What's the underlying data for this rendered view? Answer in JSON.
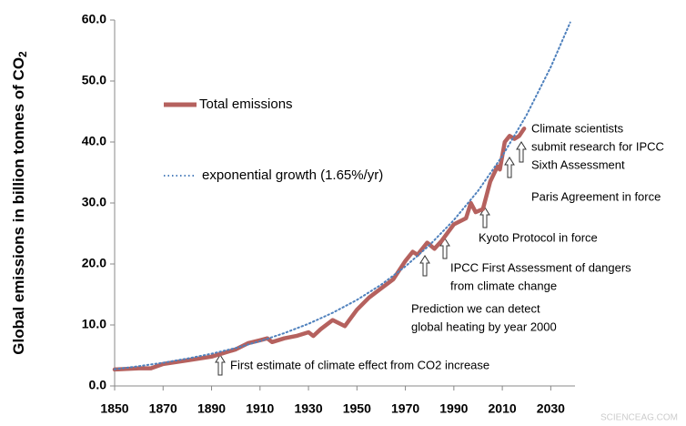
{
  "chart_data": {
    "type": "line",
    "ylabel": [
      "Global emissions in billion tonnes of CO",
      "2"
    ],
    "xlim": [
      1850,
      2040
    ],
    "ylim": [
      0,
      60
    ],
    "xticks": [
      1850,
      1870,
      1890,
      1910,
      1930,
      1950,
      1970,
      1990,
      2010,
      2030
    ],
    "yticks": [
      {
        "value": 0,
        "label": "0.0"
      },
      {
        "value": 10,
        "label": "10.0"
      },
      {
        "value": 20,
        "label": "20.0"
      },
      {
        "value": 30,
        "label": "30.0"
      },
      {
        "value": 40,
        "label": "40.0"
      },
      {
        "value": 50,
        "label": "50.0"
      },
      {
        "value": 60,
        "label": "60.0"
      }
    ],
    "series": [
      {
        "name": "Total emissions",
        "color": "#b5615e",
        "style": "solid",
        "x": [
          1850,
          1860,
          1865,
          1870,
          1880,
          1890,
          1900,
          1905,
          1910,
          1913,
          1915,
          1920,
          1925,
          1930,
          1932,
          1935,
          1940,
          1945,
          1950,
          1955,
          1960,
          1965,
          1970,
          1973,
          1975,
          1979,
          1982,
          1985,
          1990,
          1995,
          1997,
          1999,
          2002,
          2005,
          2008,
          2009,
          2011,
          2013,
          2015,
          2017,
          2019
        ],
        "values": [
          2.7,
          2.9,
          2.9,
          3.6,
          4.2,
          4.8,
          6.0,
          7.0,
          7.5,
          7.8,
          7.2,
          7.8,
          8.2,
          8.8,
          8.2,
          9.3,
          10.8,
          9.8,
          12.5,
          14.5,
          16,
          17.5,
          20.5,
          22,
          21.5,
          23.5,
          22.5,
          23.8,
          26.5,
          27.5,
          30,
          28.5,
          29,
          33.5,
          36,
          35.5,
          40,
          41,
          40.5,
          41,
          42.2
        ]
      },
      {
        "name": "exponential growth (1.65%/yr)",
        "color": "#4f81bd",
        "style": "dotted",
        "x": [
          1850,
          1860,
          1870,
          1880,
          1890,
          1900,
          1910,
          1920,
          1930,
          1940,
          1950,
          1960,
          1970,
          1980,
          1990,
          2000,
          2010,
          2020,
          2030,
          2038
        ],
        "values": [
          2.75,
          3.24,
          3.81,
          4.49,
          5.29,
          6.23,
          7.34,
          8.65,
          10.2,
          12.0,
          14.1,
          16.6,
          19.6,
          23.1,
          27.2,
          32.0,
          37.7,
          44.4,
          52.3,
          59.6
        ]
      }
    ],
    "annotations": [
      [
        "First estimate of climate effect from CO2 increase"
      ],
      [
        "Prediction we can detect",
        "global heating by year 2000"
      ],
      [
        "IPCC First Assessment of dangers",
        "from climate change"
      ],
      [
        "Kyoto Protocol in force"
      ],
      [
        "Paris Agreement in force"
      ],
      [
        "Climate scientists",
        "submit research for IPCC",
        "Sixth Assessment"
      ]
    ],
    "watermark": "SCIENCEAG.COM"
  }
}
